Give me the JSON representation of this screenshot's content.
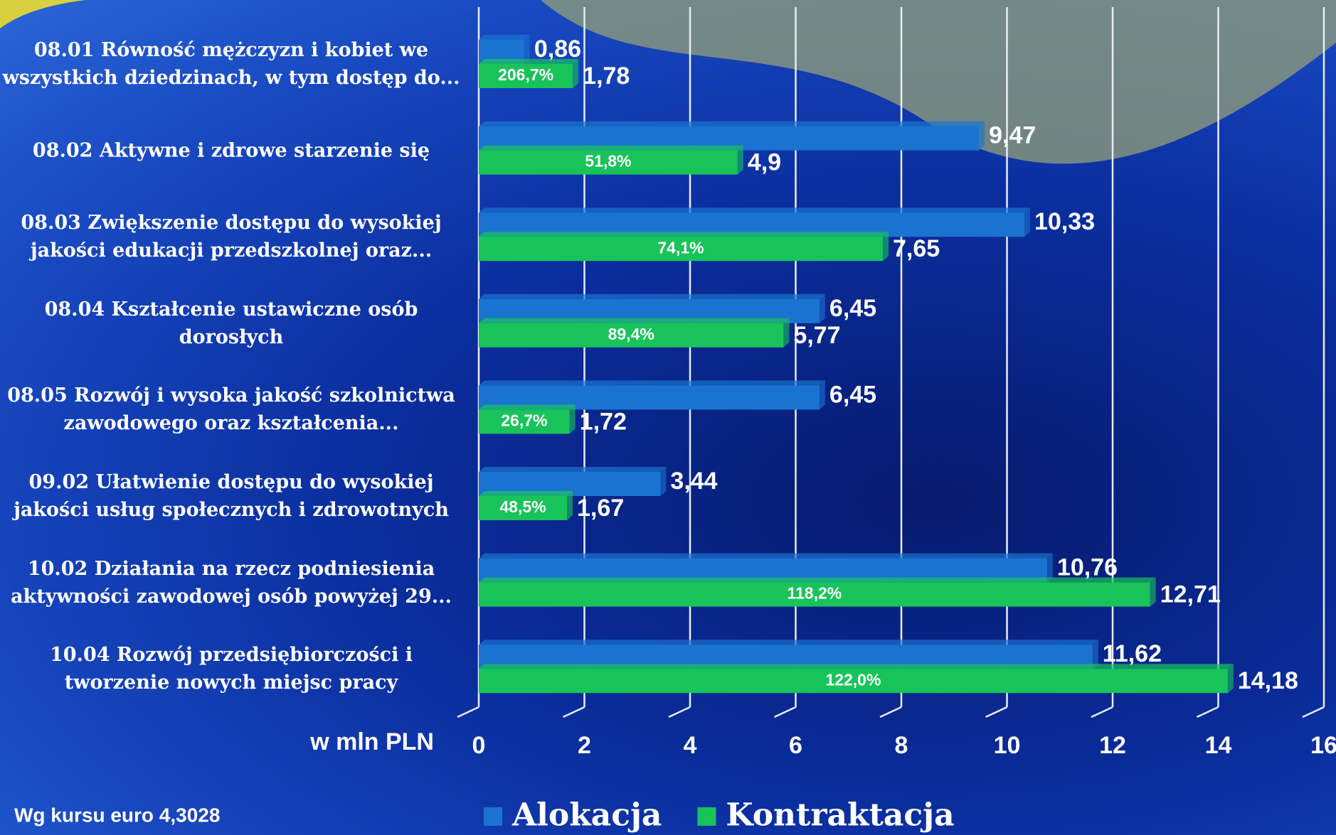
{
  "chart_data": {
    "type": "hbar",
    "categories": [
      "08.01 Równość mężczyzn i kobiet we\nwszystkich dziedzinach, w tym dostęp do...",
      "08.02 Aktywne i zdrowe starzenie się",
      "08.03 Zwiększenie dostępu do wysokiej\njakości edukacji przedszkolnej oraz...",
      "08.04 Kształcenie ustawiczne osób\ndorosłych",
      "08.05 Rozwój i wysoka jakość szkolnictwa\nzawodowego oraz kształcenia...",
      "09.02 Ułatwienie dostępu do wysokiej\njakości usług społecznych i zdrowotnych",
      "10.02 Działania na rzecz podniesienia\naktywności zawodowej osób powyżej 29...",
      "10.04 Rozwój przedsiębiorczości i\ntworzenie nowych miejsc pracy"
    ],
    "series": [
      {
        "name": "Alokacja",
        "color": "#1b73d0",
        "values": [
          0.86,
          9.47,
          10.33,
          6.45,
          6.45,
          3.44,
          10.76,
          11.62
        ],
        "value_labels": [
          "0,86",
          "9,47",
          "10,33",
          "6,45",
          "6,45",
          "3,44",
          "10,76",
          "11,62"
        ]
      },
      {
        "name": "Kontraktacja",
        "color": "#18c45a",
        "values": [
          1.78,
          4.9,
          7.65,
          5.77,
          1.72,
          1.67,
          12.71,
          14.18
        ],
        "value_labels": [
          "1,78",
          "4,9",
          "7,65",
          "5,77",
          "1,72",
          "1,67",
          "12,71",
          "14,18"
        ],
        "percentages": [
          206.7,
          51.8,
          74.1,
          89.4,
          26.7,
          48.5,
          118.2,
          122.0
        ],
        "percentage_labels": [
          "206,7%",
          "51,8%",
          "74,1%",
          "89,4%",
          "26,7%",
          "48,5%",
          "118,2%",
          "122,0%"
        ]
      }
    ],
    "xlabel": "w mln PLN",
    "note": "Wg kursu euro 4,3028",
    "xlim": [
      0,
      16
    ],
    "xticks": [
      0,
      2,
      4,
      6,
      8,
      10,
      12,
      14,
      16
    ],
    "grid": true,
    "legend": "bottom"
  }
}
